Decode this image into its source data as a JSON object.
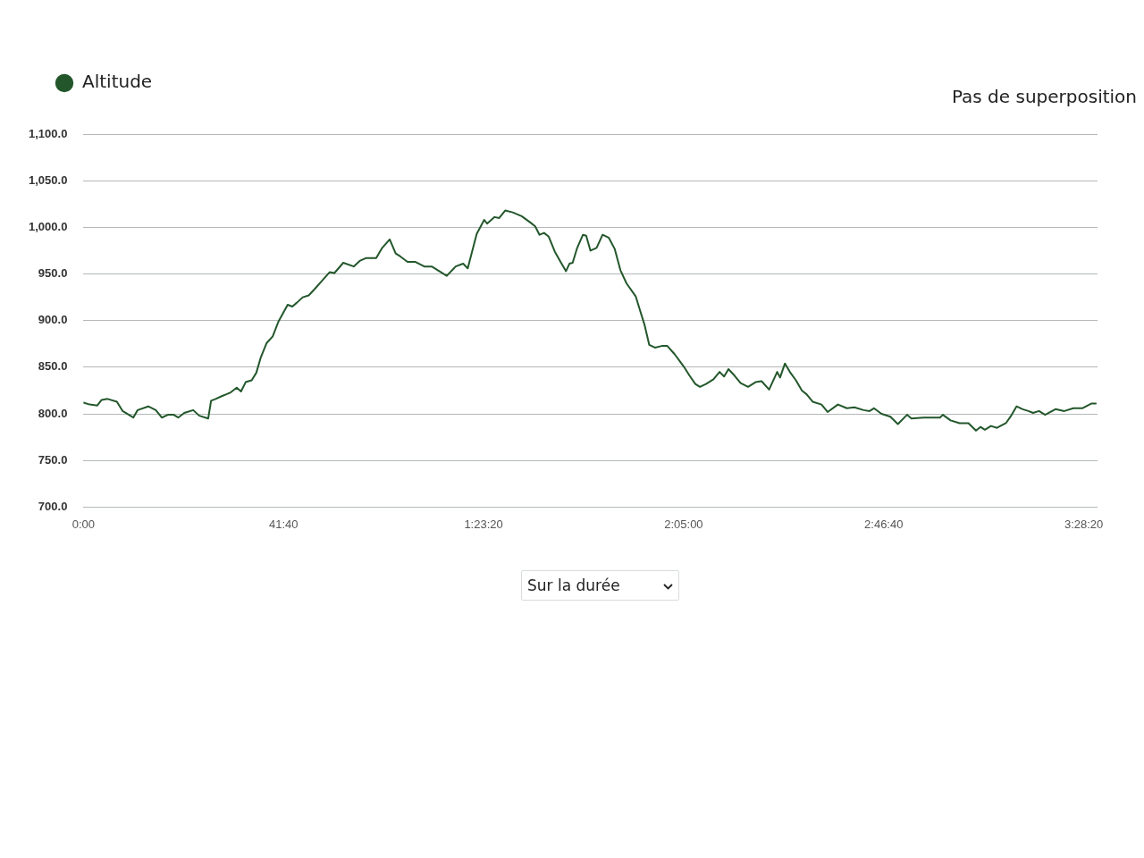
{
  "chart_data": {
    "type": "line",
    "x": [
      0,
      79,
      173,
      227,
      302,
      418,
      490,
      623,
      677,
      810,
      904,
      979,
      1055,
      1127,
      1184,
      1260,
      1372,
      1447,
      1559,
      1595,
      1652,
      1728,
      1786,
      1840,
      1915,
      1969,
      2027,
      2102,
      2160,
      2214,
      2290,
      2365,
      2437,
      2552,
      2610,
      2664,
      2740,
      2815,
      2891,
      2984,
      3078,
      3136,
      3247,
      3377,
      3452,
      3528,
      3658,
      3733,
      3827,
      3902,
      3956,
      4050,
      4144,
      4259,
      4352,
      4540,
      4651,
      4745,
      4802,
      4914,
      5008,
      5044,
      5137,
      5195,
      5270,
      5364,
      5476,
      5587,
      5645,
      5699,
      5756,
      5814,
      5890,
      5962,
      6030,
      6073,
      6113,
      6170,
      6242,
      6282,
      6336,
      6412,
      6487,
      6563,
      6638,
      6710,
      6786,
      6901,
      6955,
      7013,
      7070,
      7142,
      7236,
      7294,
      7387,
      7499,
      7574,
      7646,
      7704,
      7780,
      7873,
      7949,
      8006,
      8060,
      8136,
      8212,
      8305,
      8399,
      8474,
      8568,
      8669,
      8705,
      8766,
      8827,
      8903,
      8978,
      9036,
      9112,
      9223,
      9299,
      9428,
      9540,
      9634,
      9749,
      9824,
      9878,
      9972,
      10084,
      10177,
      10292,
      10346,
      10498,
      10703,
      10739,
      10836,
      10948,
      11059,
      11153,
      11210,
      11264,
      11340,
      11416,
      11527,
      11585,
      11660,
      11736,
      11808,
      11866,
      11941,
      12017,
      12146,
      12258,
      12370,
      12481,
      12593,
      12650
    ],
    "series": [
      {
        "name": "Altitude",
        "color": "#23572b",
        "values": [
          812,
          810,
          809,
          815,
          816,
          813,
          803,
          796,
          804,
          808,
          804,
          796,
          799,
          799,
          796,
          801,
          804,
          798,
          795,
          814,
          816,
          819,
          821,
          823,
          828,
          824,
          834,
          836,
          844,
          860,
          876,
          883,
          899,
          917,
          915,
          919,
          925,
          927,
          934,
          943,
          952,
          951,
          962,
          958,
          964,
          967,
          967,
          978,
          987,
          972,
          969,
          963,
          963,
          958,
          958,
          948,
          958,
          961,
          956,
          993,
          1008,
          1004,
          1011,
          1010,
          1018,
          1016,
          1012,
          1005,
          1001,
          992,
          994,
          990,
          974,
          963,
          953,
          961,
          962,
          978,
          992,
          991,
          975,
          978,
          992,
          989,
          977,
          954,
          940,
          926,
          911,
          895,
          874,
          871,
          873,
          873,
          864,
          851,
          841,
          832,
          829,
          832,
          837,
          845,
          840,
          848,
          841,
          833,
          829,
          834,
          835,
          826,
          845,
          839,
          854,
          845,
          836,
          825,
          821,
          813,
          810,
          802,
          810,
          806,
          807,
          804,
          803,
          806,
          800,
          797,
          789,
          799,
          795,
          796,
          796,
          799,
          793,
          790,
          790,
          782,
          786,
          783,
          787,
          785,
          790,
          797,
          808,
          805,
          803,
          801,
          803,
          799,
          805,
          803,
          806,
          806,
          811,
          811
        ]
      }
    ],
    "xlim": [
      0,
      12672
    ],
    "xticks": [
      {
        "value": 0,
        "label": "0:00"
      },
      {
        "value": 2500,
        "label": "41:40"
      },
      {
        "value": 5000,
        "label": "1:23:20"
      },
      {
        "value": 7500,
        "label": "2:05:00"
      },
      {
        "value": 10000,
        "label": "2:46:40"
      },
      {
        "value": 12500,
        "label": "3:28:20"
      }
    ],
    "ylim": [
      700,
      1100
    ],
    "yticks": [
      {
        "value": 700,
        "label": "700.0"
      },
      {
        "value": 750,
        "label": "750.0"
      },
      {
        "value": 800,
        "label": "800.0"
      },
      {
        "value": 850,
        "label": "850.0"
      },
      {
        "value": 900,
        "label": "900.0"
      },
      {
        "value": 950,
        "label": "950.0"
      },
      {
        "value": 1000,
        "label": "1,000.0"
      },
      {
        "value": 1050,
        "label": "1,050.0"
      },
      {
        "value": 1100,
        "label": "1,100.0"
      }
    ],
    "grid": "y",
    "legend": "top left",
    "marker": "none",
    "annotations": [
      "Pas de superposition",
      "Sur la durée"
    ]
  }
}
